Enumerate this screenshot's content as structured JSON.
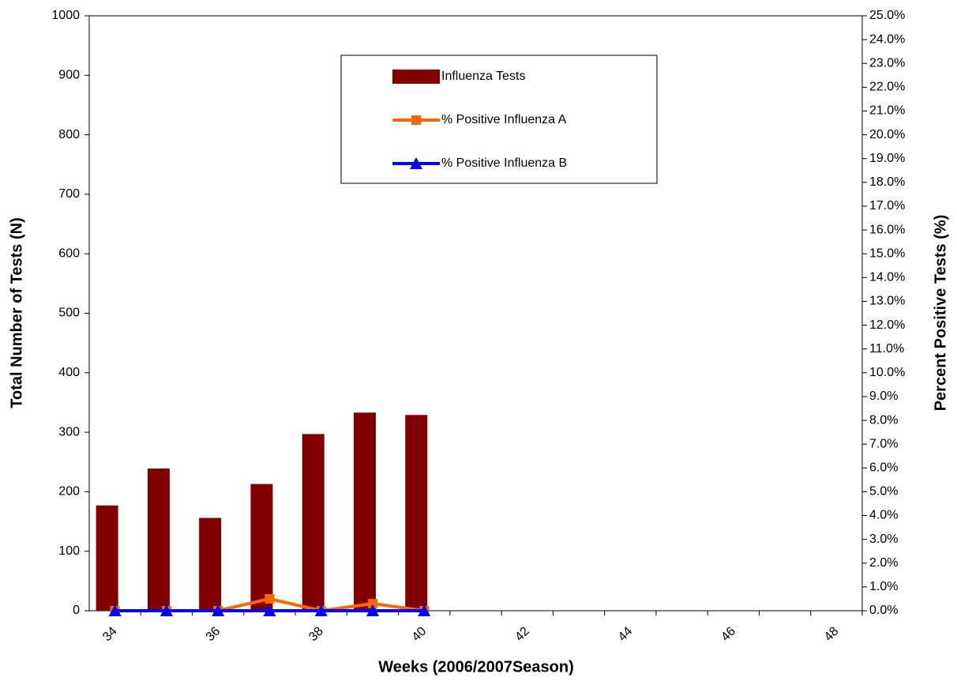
{
  "chart_data": {
    "type": "combo",
    "xlabel": "Weeks (2006/2007Season)",
    "ylabel": "Total Number of Tests (N)",
    "y2label": "Percent Positive Tests (%)",
    "categories": [
      "34",
      null,
      "36",
      null,
      "38",
      null,
      "40",
      null,
      "42",
      null,
      "44",
      null,
      "46",
      null,
      "48"
    ],
    "series": [
      {
        "name": "Influenza Tests",
        "type": "bar",
        "color": "#800000",
        "values": [
          177,
          239,
          156,
          213,
          297,
          333,
          329,
          null,
          null,
          null,
          null,
          null,
          null,
          null,
          null
        ]
      },
      {
        "name": "% Positive Influenza A",
        "type": "line",
        "marker": "square",
        "axis": "y2",
        "color": "#ff6600",
        "values": [
          0,
          0,
          0,
          0.5,
          0,
          0.3,
          0,
          null,
          null,
          null,
          null,
          null,
          null,
          null,
          null
        ]
      },
      {
        "name": "% Positive Influenza B",
        "type": "line",
        "marker": "triangle",
        "axis": "y2",
        "color": "#0000ff",
        "values": [
          0,
          0,
          0,
          0,
          0,
          0,
          0,
          null,
          null,
          null,
          null,
          null,
          null,
          null,
          null
        ]
      }
    ],
    "ylim": [
      0,
      1000
    ],
    "yticks": [
      0,
      100,
      200,
      300,
      400,
      500,
      600,
      700,
      800,
      900,
      1000
    ],
    "y2lim": [
      0,
      25
    ],
    "y2ticks": [
      {
        "value": 0,
        "label": "0.0%"
      },
      {
        "value": 1,
        "label": "1.0%"
      },
      {
        "value": 2,
        "label": "2.0%"
      },
      {
        "value": 3,
        "label": "3.0%"
      },
      {
        "value": 4,
        "label": "4.0%"
      },
      {
        "value": 5,
        "label": "5.0%"
      },
      {
        "value": 6,
        "label": "6.0%"
      },
      {
        "value": 7,
        "label": "7.0%"
      },
      {
        "value": 8,
        "label": "8.0%"
      },
      {
        "value": 9,
        "label": "9.0%"
      },
      {
        "value": 10,
        "label": "10.0%"
      },
      {
        "value": 11,
        "label": "11.0%"
      },
      {
        "value": 12,
        "label": "12.0%"
      },
      {
        "value": 13,
        "label": "13.0%"
      },
      {
        "value": 14,
        "label": "14.0%"
      },
      {
        "value": 15,
        "label": "15.0%"
      },
      {
        "value": 16,
        "label": "16.0%"
      },
      {
        "value": 17,
        "label": "17.0%"
      },
      {
        "value": 18,
        "label": "18.0%"
      },
      {
        "value": 19,
        "label": "19.0%"
      },
      {
        "value": 20,
        "label": "20.0%"
      },
      {
        "value": 21,
        "label": "21.0%"
      },
      {
        "value": 22,
        "label": "22.0%"
      },
      {
        "value": 23,
        "label": "23.0%"
      },
      {
        "value": 24,
        "label": "24.0%"
      },
      {
        "value": 25,
        "label": "25.0%"
      }
    ],
    "legend": "top-center"
  }
}
